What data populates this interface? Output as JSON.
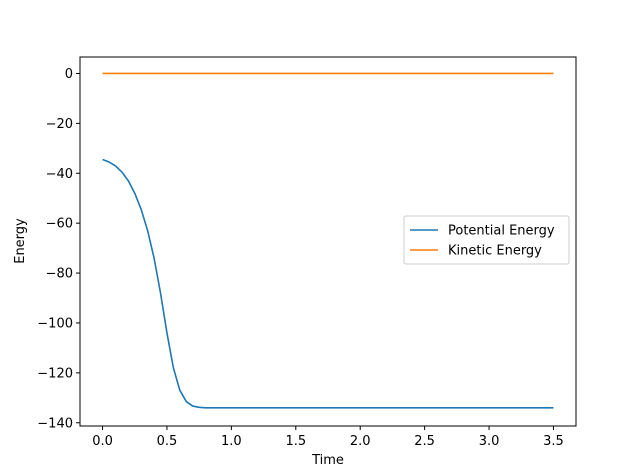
{
  "chart_data": {
    "type": "line",
    "title": "",
    "xlabel": "Time",
    "ylabel": "Energy",
    "xlim": [
      -0.175,
      3.675
    ],
    "ylim": [
      -141.3,
      6.6
    ],
    "xticks": [
      0.0,
      0.5,
      1.0,
      1.5,
      2.0,
      2.5,
      3.0,
      3.5
    ],
    "xtick_labels": [
      "0.0",
      "0.5",
      "1.0",
      "1.5",
      "2.0",
      "2.5",
      "3.0",
      "3.5"
    ],
    "yticks": [
      0,
      -20,
      -40,
      -60,
      -80,
      -100,
      -120,
      -140
    ],
    "ytick_labels": [
      "0",
      "−20",
      "−40",
      "−60",
      "−80",
      "−100",
      "−120",
      "−140"
    ],
    "grid": false,
    "legend_position": "center-right",
    "series": [
      {
        "name": "Potential Energy",
        "color": "#1f77b4",
        "x": [
          0.0,
          0.05,
          0.1,
          0.15,
          0.2,
          0.25,
          0.3,
          0.35,
          0.4,
          0.45,
          0.5,
          0.55,
          0.6,
          0.65,
          0.7,
          0.75,
          0.8,
          0.9,
          1.0,
          1.5,
          2.0,
          2.5,
          3.0,
          3.5
        ],
        "y": [
          -34.5,
          -35.5,
          -37.0,
          -39.5,
          -43.0,
          -48.0,
          -54.5,
          -63.0,
          -74.0,
          -88.0,
          -104.0,
          -118.0,
          -127.0,
          -131.5,
          -133.3,
          -133.8,
          -134.0,
          -134.0,
          -134.0,
          -134.0,
          -134.0,
          -134.0,
          -134.0,
          -134.0
        ]
      },
      {
        "name": "Kinetic Energy",
        "color": "#ff7f0e",
        "x": [
          0.0,
          3.5
        ],
        "y": [
          0.0,
          0.0
        ]
      }
    ]
  }
}
